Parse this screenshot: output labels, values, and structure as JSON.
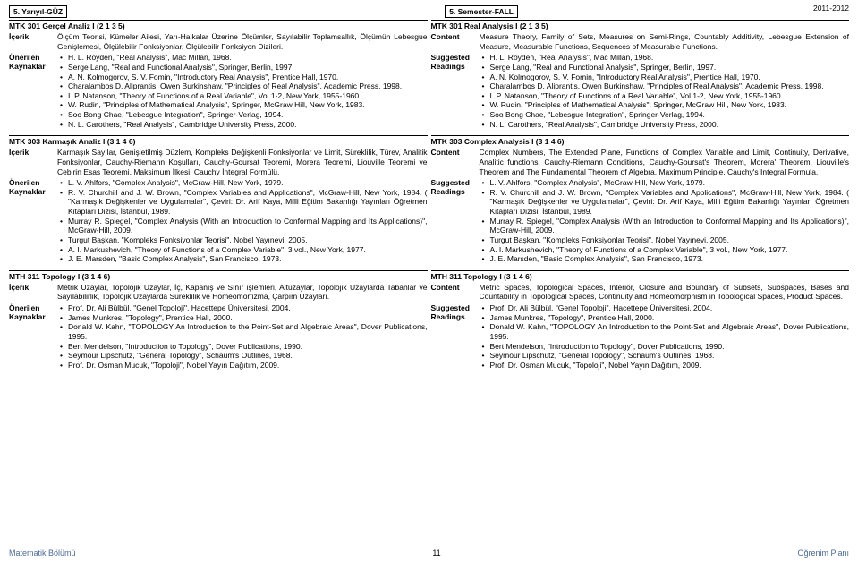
{
  "year_label": "2011-2012",
  "semester_left": "5. Yarıyıl-GÜZ",
  "semester_right": "5. Semester-FALL",
  "labels": {
    "icerik": "İçerik",
    "content": "Content",
    "onerilen": "Önerilen",
    "kaynaklar": "Kaynaklar",
    "suggested": "Suggested",
    "readings": "Readings"
  },
  "left": {
    "courses": [
      {
        "title": "MTK 301 Gerçel Analiz I (2 1 3  5)",
        "content": "Ölçüm Teorisi, Kümeler Ailesi, Yarı-Halkalar Üzerine Ölçümler, Sayılabilir Toplamsallık, Ölçümün Lebesgue Genişlemesi, Ölçülebilir Fonksiyonlar, Ölçülebilir Fonksiyon Dizileri.",
        "refs": [
          "H. L. Royden, \"Real Analysis\", Mac Millan, 1968.",
          "Serge Lang, \"Real and Functional Analysis\", Springer, Berlin, 1997.",
          "A. N. Kolmogorov, S. V. Fomin, \"Introductory Real Analysis\", Prentice Hall, 1970.",
          "Charalambos D. Aliprantis, Owen Burkinshaw, \"Principles of Real Analysis\", Academic Press, 1998.",
          "I. P. Natanson, \"Theory of Functions of a Real Variable\", Vol 1-2, New York, 1955-1960.",
          "W. Rudin, \"Principles of Mathematical Analysis\", Springer, McGraw Hill, New York, 1983.",
          "Soo Bong Chae, \"Lebesgue Integration\", Springer-Verlag, 1994.",
          "N. L. Carothers, \"Real Analysis\", Cambridge University Press, 2000."
        ]
      },
      {
        "title": "MTK 303 Karmaşık Analiz I (3 1 4  6)",
        "content": "Karmaşık Sayılar, Genişletilmiş Düzlem, Kompleks Değişkenli Fonksiyonlar ve Limit, Süreklilik, Türev, Analitik Fonksiyonlar, Cauchy-Riemann Koşulları, Cauchy-Goursat Teoremi, Morera Teoremi, Liouville Teoremi ve Cebirin Esas Teoremi, Maksimum İlkesi, Cauchy İntegral Formülü.",
        "refs": [
          "L. V. Ahlfors, \"Complex Analysis\", McGraw-Hill, New York, 1979.",
          "R. V. Churchill and J. W. Brown, \"Complex Variables and Applications\", McGraw-Hill, New York, 1984. ( \"Karmaşık Değişkenler ve Uygulamalar\", Çeviri: Dr. Arif Kaya, Milli Eğitim Bakanlığı Yayınları Öğretmen Kitapları Dizisi, İstanbul, 1989.",
          "Murray R. Spiegel, \"Complex Analysis (With an Introduction to Conformal Mapping and Its Applications)\", McGraw-Hill, 2009.",
          "Turgut Başkan, \"Kompleks Fonksiyonlar Teorisi\", Nobel Yayınevi, 2005.",
          "A. I. Markushevich, \"Theory of Functions of a Complex Variable\", 3 vol., New York, 1977.",
          "J. E. Marsden, \"Basic Complex Analysis\", San Francisco, 1973."
        ]
      },
      {
        "title": "MTH 311 Topology I (3 1 4  6)",
        "content": "Metrik Uzaylar, Topolojik Uzaylar, İç, Kapanış ve Sınır işlemleri, Altuzaylar, Topolojik Uzaylarda Tabanlar ve Sayılabilirlik, Topolojik Uzaylarda Süreklilik ve Homeomorfizma, Çarpım Uzayları.",
        "refs": [
          "Prof. Dr. Ali Bülbül, \"Genel Topoloji\", Hacettepe Üniversitesi, 2004.",
          "James Munkres, \"Topology\", Prentice Hall, 2000.",
          "Donald W. Kahn, \"TOPOLOGY An Introduction to the Point-Set and Algebraic Areas\", Dover Publications, 1995.",
          "Bert Mendelson, \"Introduction to Topology\", Dover Publications, 1990.",
          "Seymour Lipschutz, \"General Topology\", Schaum's Outlines, 1968.",
          "Prof. Dr. Osman Mucuk, \"Topoloji\", Nobel Yayın Dağıtım, 2009."
        ]
      }
    ]
  },
  "right": {
    "courses": [
      {
        "title": "MTK 301 Real Analysis I (2 1 3  5)",
        "content": "Measure Theory, Family of Sets, Measures on Semi-Rings, Countably Additivity, Lebesgue Extension of Measure, Measurable Functions, Sequences of Measurable Functions.",
        "refs": [
          "H. L. Royden, \"Real Analysis\", Mac Millan, 1968.",
          "Serge Lang, \"Real and Functional Analysis\", Springer, Berlin, 1997.",
          "A. N. Kolmogorov, S. V. Fomin, \"Introductory Real Analysis\", Prentice Hall, 1970.",
          "Charalambos D. Aliprantis, Owen Burkinshaw, \"Principles of Real Analysis\", Academic Press, 1998.",
          "I. P. Natanson, \"Theory of Functions of a Real Variable\", Vol 1-2, New York, 1955-1960.",
          "W. Rudin, \"Principles of Mathematical Analysis\", Springer, McGraw Hill, New York, 1983.",
          "Soo Bong Chae, \"Lebesgue Integration\", Springer-Verlag, 1994.",
          "N. L. Carothers, \"Real Analysis\", Cambridge University Press, 2000."
        ]
      },
      {
        "title": "MTK 303 Complex Analysis I (3 1 4  6)",
        "content": "Complex Numbers, The Extended Plane, Functions of Complex Variable and Limit, Continuity, Derivative, Analitic functions, Cauchy-Riemann Conditions, Cauchy-Goursat's Theorem, Morera' Theorem, Liouville's Theorem and The Fundamental Theorem of Algebra, Maximum Principle, Cauchy's Integral Formula.",
        "refs": [
          "L. V. Ahlfors, \"Complex Analysis\", McGraw-Hill, New York, 1979.",
          "R. V. Churchill and J. W. Brown, \"Complex Variables and Applications\", McGraw-Hill, New York, 1984. ( \"Karmaşık Değişkenler ve Uygulamalar\", Çeviri: Dr. Arif Kaya, Milli Eğitim Bakanlığı Yayınları Öğretmen Kitapları Dizisi, İstanbul, 1989.",
          "Murray R. Spiegel, \"Complex Analysis (With an Introduction to Conformal Mapping and Its Applications)\", McGraw-Hill, 2009.",
          "Turgut Başkan, \"Kompleks Fonksiyonlar Teorisi\", Nobel Yayınevi, 2005.",
          "A. I. Markushevich, \"Theory of Functions of a Complex Variable\", 3 vol., New York, 1977.",
          "J. E. Marsden, \"Basic Complex Analysis\", San Francisco, 1973."
        ]
      },
      {
        "title": "MTH 311 Topology I (3 1 4  6)",
        "content": "Metric Spaces, Topological Spaces, Interior, Closure and Boundary of Subsets, Subspaces, Bases and Countability in Topological Spaces, Continuity and Homeomorphism in Topological Spaces, Product Spaces.",
        "refs": [
          "Prof. Dr. Ali Bülbül, \"Genel Topoloji\", Hacettepe Üniversitesi, 2004.",
          "James Munkres, \"Topology\", Prentice Hall, 2000.",
          "Donald W. Kahn, \"TOPOLOGY An Introduction to the Point-Set and Algebraic Areas\", Dover Publications, 1995.",
          "Bert Mendelson, \"Introduction to Topology\", Dover Publications, 1990.",
          "Seymour Lipschutz, \"General Topology\", Schaum's Outlines, 1968.",
          "Prof. Dr. Osman Mucuk, \"Topoloji\", Nobel Yayın Dağıtım, 2009."
        ]
      }
    ]
  },
  "footer": {
    "left": "Matematik Bölümü",
    "page": "11",
    "right": "Öğrenim Planı"
  }
}
